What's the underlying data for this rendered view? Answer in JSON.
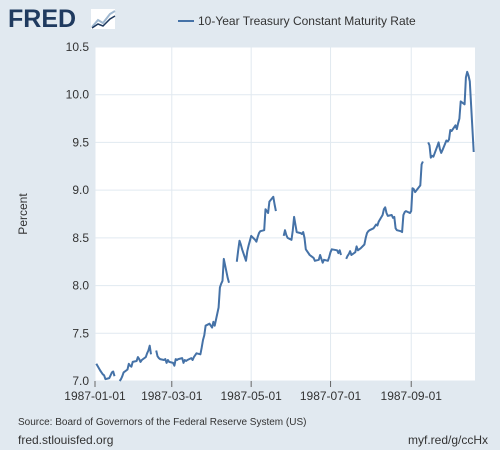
{
  "brand": {
    "logo_text": "FRED",
    "logo_icon": "chart-trend-icon"
  },
  "source_text": "Source: Board of Governors of the Federal Reserve System (US)",
  "site_text": "fred.stlouisfed.org",
  "shortlink_text": "myf.red/g/ccHx",
  "colors": {
    "background": "#e1e9f0",
    "plot_background": "#ffffff",
    "series": "#4572a7",
    "grid": "#e1e9f0",
    "text": "#333333",
    "logo": "#1f3a5f"
  },
  "chart_data": {
    "type": "line",
    "title": "",
    "xlabel": "",
    "ylabel": "Percent",
    "ylim": [
      7.0,
      10.5
    ],
    "xlim": [
      "1987-01-01",
      "1987-10-20"
    ],
    "yticks": [
      "7.0",
      "7.5",
      "8.0",
      "8.5",
      "9.0",
      "9.5",
      "10.0",
      "10.5"
    ],
    "xticks": [
      "1987-01-01",
      "1987-03-01",
      "1987-05-01",
      "1987-07-01",
      "1987-09-01"
    ],
    "grid": true,
    "legend_position": "top",
    "series": [
      {
        "name": "10-Year Treasury Constant Maturity Rate",
        "color": "#4572a7",
        "points": [
          [
            "1987-01-02",
            7.18
          ],
          [
            "1987-01-05",
            7.11
          ],
          [
            "1987-01-06",
            7.09
          ],
          [
            "1987-01-07",
            7.07
          ],
          [
            "1987-01-08",
            7.06
          ],
          [
            "1987-01-09",
            7.02
          ],
          [
            "1987-01-12",
            7.03
          ],
          [
            "1987-01-13",
            7.06
          ],
          [
            "1987-01-14",
            7.09
          ],
          [
            "1987-01-15",
            7.1
          ],
          [
            "1987-01-16",
            7.05
          ],
          null,
          [
            "1987-01-20",
            7.0
          ],
          [
            "1987-01-21",
            7.02
          ],
          [
            "1987-01-22",
            7.05
          ],
          [
            "1987-01-23",
            7.09
          ],
          [
            "1987-01-26",
            7.12
          ],
          [
            "1987-01-27",
            7.18
          ],
          [
            "1987-01-28",
            7.16
          ],
          [
            "1987-01-29",
            7.15
          ],
          [
            "1987-01-30",
            7.2
          ],
          [
            "1987-02-02",
            7.21
          ],
          [
            "1987-02-03",
            7.25
          ],
          [
            "1987-02-04",
            7.23
          ],
          [
            "1987-02-05",
            7.2
          ],
          [
            "1987-02-06",
            7.22
          ],
          [
            "1987-02-09",
            7.25
          ],
          [
            "1987-02-10",
            7.29
          ],
          [
            "1987-02-11",
            7.32
          ],
          [
            "1987-02-12",
            7.37
          ],
          [
            "1987-02-13",
            7.28
          ],
          null,
          [
            "1987-02-17",
            7.32
          ],
          [
            "1987-02-18",
            7.26
          ],
          [
            "1987-02-19",
            7.24
          ],
          [
            "1987-02-20",
            7.23
          ],
          [
            "1987-02-23",
            7.22
          ],
          [
            "1987-02-24",
            7.23
          ],
          [
            "1987-02-25",
            7.19
          ],
          [
            "1987-02-26",
            7.22
          ],
          [
            "1987-02-27",
            7.2
          ],
          [
            "1987-03-02",
            7.19
          ],
          [
            "1987-03-03",
            7.16
          ],
          [
            "1987-03-04",
            7.23
          ],
          [
            "1987-03-05",
            7.22
          ],
          [
            "1987-03-06",
            7.23
          ],
          [
            "1987-03-09",
            7.24
          ],
          [
            "1987-03-10",
            7.19
          ],
          [
            "1987-03-11",
            7.22
          ],
          [
            "1987-03-12",
            7.21
          ],
          [
            "1987-03-13",
            7.22
          ],
          [
            "1987-03-16",
            7.24
          ],
          [
            "1987-03-17",
            7.22
          ],
          [
            "1987-03-18",
            7.25
          ],
          [
            "1987-03-19",
            7.27
          ],
          [
            "1987-03-20",
            7.29
          ],
          [
            "1987-03-23",
            7.28
          ],
          [
            "1987-03-24",
            7.35
          ],
          [
            "1987-03-25",
            7.43
          ],
          [
            "1987-03-26",
            7.48
          ],
          [
            "1987-03-27",
            7.58
          ],
          [
            "1987-03-30",
            7.6
          ],
          [
            "1987-03-31",
            7.58
          ],
          [
            "1987-04-01",
            7.56
          ],
          [
            "1987-04-02",
            7.62
          ],
          [
            "1987-04-03",
            7.58
          ],
          [
            "1987-04-06",
            7.77
          ],
          [
            "1987-04-07",
            7.98
          ],
          [
            "1987-04-08",
            8.02
          ],
          [
            "1987-04-09",
            8.05
          ],
          [
            "1987-04-10",
            8.28
          ],
          [
            "1987-04-13",
            8.08
          ],
          [
            "1987-04-14",
            8.03
          ],
          null,
          [
            "1987-04-20",
            8.25
          ],
          [
            "1987-04-21",
            8.37
          ],
          [
            "1987-04-22",
            8.47
          ],
          [
            "1987-04-23",
            8.43
          ],
          [
            "1987-04-24",
            8.38
          ],
          [
            "1987-04-27",
            8.26
          ],
          [
            "1987-04-28",
            8.36
          ],
          [
            "1987-04-29",
            8.42
          ],
          [
            "1987-04-30",
            8.47
          ],
          [
            "1987-05-01",
            8.52
          ],
          [
            "1987-05-04",
            8.48
          ],
          [
            "1987-05-05",
            8.46
          ],
          [
            "1987-05-06",
            8.51
          ],
          [
            "1987-05-07",
            8.55
          ],
          [
            "1987-05-08",
            8.57
          ],
          [
            "1987-05-11",
            8.58
          ],
          [
            "1987-05-12",
            8.8
          ],
          [
            "1987-05-13",
            8.78
          ],
          [
            "1987-05-14",
            8.76
          ],
          [
            "1987-05-15",
            8.88
          ],
          [
            "1987-05-18",
            8.93
          ],
          [
            "1987-05-19",
            8.85
          ],
          [
            "1987-05-20",
            8.78
          ],
          null,
          [
            "1987-05-26",
            8.52
          ],
          [
            "1987-05-27",
            8.58
          ],
          [
            "1987-05-28",
            8.53
          ],
          [
            "1987-05-29",
            8.5
          ],
          [
            "1987-06-01",
            8.48
          ],
          [
            "1987-06-02",
            8.58
          ],
          [
            "1987-06-03",
            8.72
          ],
          [
            "1987-06-04",
            8.64
          ],
          [
            "1987-06-05",
            8.56
          ],
          [
            "1987-06-08",
            8.55
          ],
          [
            "1987-06-09",
            8.54
          ],
          [
            "1987-06-10",
            8.56
          ],
          [
            "1987-06-11",
            8.5
          ],
          [
            "1987-06-12",
            8.38
          ],
          [
            "1987-06-15",
            8.32
          ],
          [
            "1987-06-16",
            8.31
          ],
          [
            "1987-06-17",
            8.3
          ],
          [
            "1987-06-18",
            8.29
          ],
          [
            "1987-06-19",
            8.26
          ],
          [
            "1987-06-22",
            8.27
          ],
          [
            "1987-06-23",
            8.32
          ],
          [
            "1987-06-24",
            8.28
          ],
          [
            "1987-06-25",
            8.24
          ],
          [
            "1987-06-26",
            8.27
          ],
          [
            "1987-06-29",
            8.26
          ],
          [
            "1987-06-30",
            8.3
          ],
          [
            "1987-07-01",
            8.35
          ],
          [
            "1987-07-02",
            8.38
          ],
          [
            "1987-07-06",
            8.37
          ],
          [
            "1987-07-07",
            8.34
          ],
          [
            "1987-07-08",
            8.37
          ],
          [
            "1987-07-09",
            8.32
          ],
          null,
          [
            "1987-07-13",
            8.28
          ],
          [
            "1987-07-14",
            8.31
          ],
          [
            "1987-07-15",
            8.33
          ],
          [
            "1987-07-16",
            8.36
          ],
          [
            "1987-07-17",
            8.32
          ],
          [
            "1987-07-20",
            8.35
          ],
          [
            "1987-07-21",
            8.41
          ],
          [
            "1987-07-22",
            8.37
          ],
          [
            "1987-07-23",
            8.38
          ],
          [
            "1987-07-24",
            8.39
          ],
          [
            "1987-07-27",
            8.43
          ],
          [
            "1987-07-28",
            8.5
          ],
          [
            "1987-07-29",
            8.55
          ],
          [
            "1987-07-30",
            8.57
          ],
          [
            "1987-07-31",
            8.58
          ],
          [
            "1987-08-03",
            8.6
          ],
          [
            "1987-08-04",
            8.62
          ],
          [
            "1987-08-05",
            8.64
          ],
          [
            "1987-08-06",
            8.63
          ],
          [
            "1987-08-07",
            8.67
          ],
          [
            "1987-08-10",
            8.74
          ],
          [
            "1987-08-11",
            8.8
          ],
          [
            "1987-08-12",
            8.82
          ],
          [
            "1987-08-13",
            8.76
          ],
          [
            "1987-08-14",
            8.73
          ],
          [
            "1987-08-17",
            8.74
          ],
          [
            "1987-08-18",
            8.71
          ],
          [
            "1987-08-19",
            8.72
          ],
          [
            "1987-08-20",
            8.6
          ],
          [
            "1987-08-21",
            8.58
          ],
          [
            "1987-08-24",
            8.57
          ],
          [
            "1987-08-25",
            8.56
          ],
          [
            "1987-08-26",
            8.74
          ],
          [
            "1987-08-27",
            8.77
          ],
          [
            "1987-08-28",
            8.78
          ],
          [
            "1987-08-31",
            8.76
          ],
          [
            "1987-09-01",
            8.78
          ],
          [
            "1987-09-02",
            9.02
          ],
          [
            "1987-09-03",
            9.01
          ],
          [
            "1987-09-04",
            8.98
          ],
          [
            "1987-09-08",
            9.05
          ],
          [
            "1987-09-09",
            9.27
          ],
          [
            "1987-09-10",
            9.3
          ],
          null,
          [
            "1987-09-14",
            9.5
          ],
          [
            "1987-09-15",
            9.47
          ],
          [
            "1987-09-16",
            9.34
          ],
          [
            "1987-09-17",
            9.36
          ],
          [
            "1987-09-18",
            9.35
          ],
          [
            "1987-09-21",
            9.46
          ],
          [
            "1987-09-22",
            9.5
          ],
          [
            "1987-09-23",
            9.43
          ],
          [
            "1987-09-24",
            9.39
          ],
          [
            "1987-09-25",
            9.42
          ],
          [
            "1987-09-28",
            9.52
          ],
          [
            "1987-09-29",
            9.51
          ],
          [
            "1987-09-30",
            9.53
          ],
          [
            "1987-10-01",
            9.63
          ],
          [
            "1987-10-02",
            9.62
          ],
          [
            "1987-10-05",
            9.68
          ],
          [
            "1987-10-06",
            9.64
          ],
          [
            "1987-10-07",
            9.7
          ],
          [
            "1987-10-08",
            9.75
          ],
          [
            "1987-10-09",
            9.93
          ],
          [
            "1987-10-12",
            9.9
          ],
          [
            "1987-10-13",
            10.18
          ],
          [
            "1987-10-14",
            10.24
          ],
          [
            "1987-10-15",
            10.2
          ],
          [
            "1987-10-16",
            10.14
          ],
          [
            "1987-10-19",
            9.4
          ]
        ]
      }
    ]
  }
}
